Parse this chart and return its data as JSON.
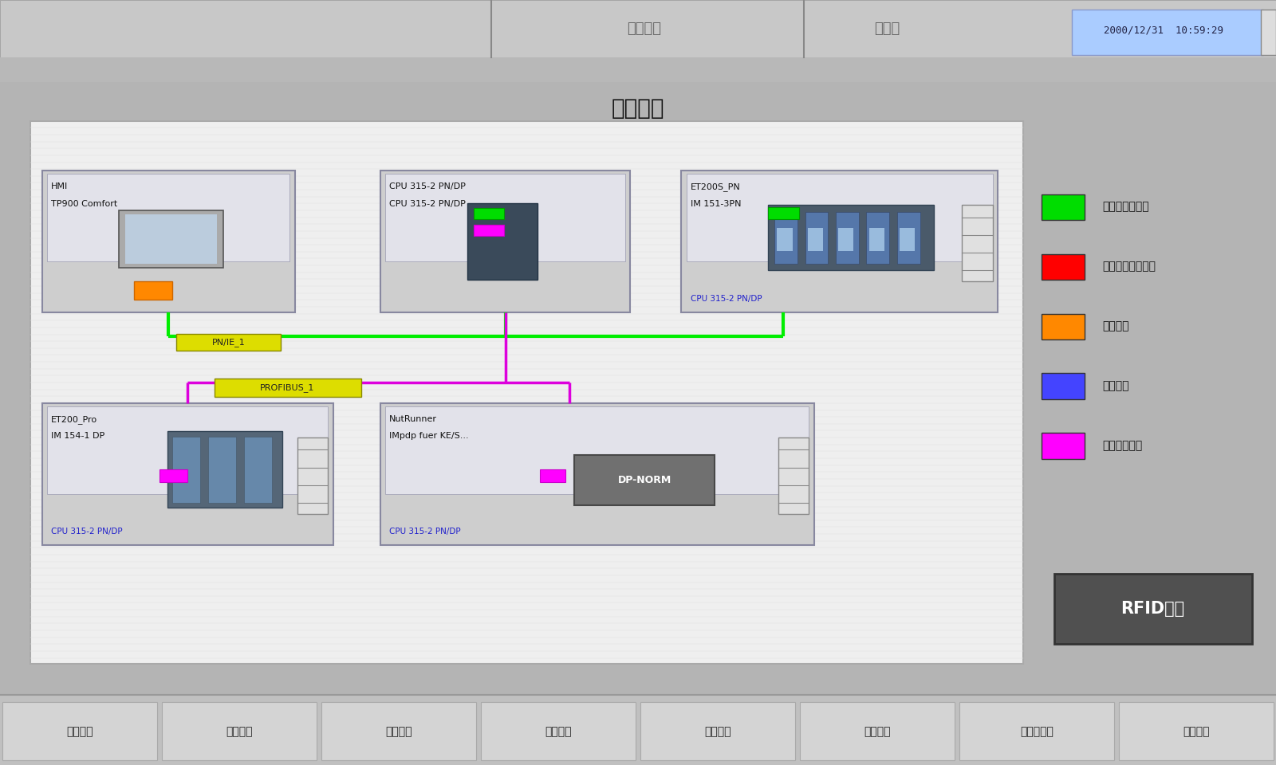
{
  "title": "网络诊断",
  "bg_outer": "#c0c0c0",
  "top_label1": "锁片压机",
  "top_label2": "无模式",
  "top_label3": "2000/12/31  10:59:29",
  "bottom_buttons": [
    "生产总览",
    "手动操作",
    "模式选择",
    "报警信息",
    "网络诊断",
    "设备维护",
    "传感器状态",
    "控制面板"
  ],
  "legend_items": [
    {
      "color": "#00dd00",
      "label": "模块激活且正常"
    },
    {
      "color": "#ff0000",
      "label": "模块组态但不可用"
    },
    {
      "color": "#ff8800",
      "label": "模块故障"
    },
    {
      "color": "#4444ff",
      "label": "模块旁路"
    },
    {
      "color": "#ff00ff",
      "label": "模块取消激活"
    }
  ],
  "rfid_button_label": "RFID读写"
}
